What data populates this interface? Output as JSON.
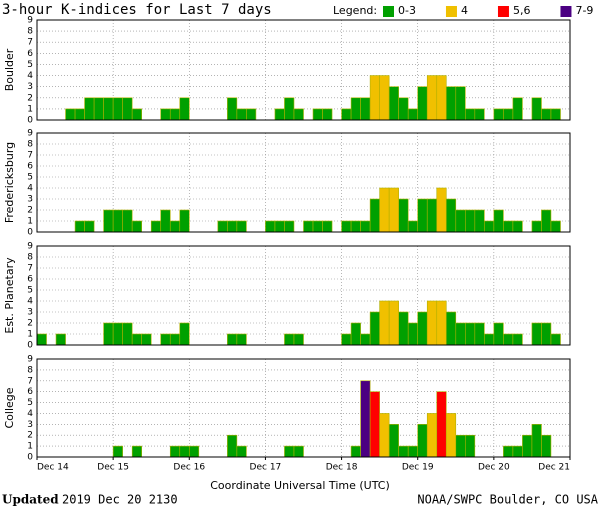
{
  "title": "3-hour K-indices for Last 7 days",
  "legend": {
    "title": "Legend:",
    "items": [
      {
        "label": "0-3",
        "color": "#00a000"
      },
      {
        "label": "4",
        "color": "#f0c000"
      },
      {
        "label": "5,6",
        "color": "#ff0000"
      },
      {
        "label": "7-9",
        "color": "#4b0082"
      }
    ]
  },
  "xlabel": "Coordinate Universal Time (UTC)",
  "footer": {
    "updated_label": "Updated",
    "updated": "2019 Dec 20 2130",
    "source": "NOAA/SWPC Boulder, CO USA"
  },
  "chart_data": [
    {
      "type": "bar",
      "ylabel": "Boulder",
      "ylim": [
        0,
        9
      ],
      "yticks": [
        0,
        1,
        2,
        3,
        4,
        5,
        6,
        7,
        8,
        9
      ],
      "values": [
        0,
        0,
        0,
        1,
        1,
        2,
        2,
        2,
        2,
        2,
        1,
        0,
        0,
        1,
        1,
        2,
        0,
        0,
        0,
        0,
        2,
        1,
        1,
        0,
        0,
        1,
        2,
        1,
        0,
        1,
        1,
        0,
        1,
        2,
        2,
        4,
        4,
        3,
        2,
        1,
        3,
        4,
        4,
        3,
        3,
        1,
        1,
        0,
        1,
        1,
        2,
        0,
        2,
        1,
        1,
        0
      ],
      "colors": [
        "#00a000",
        "#00a000",
        "#00a000",
        "#00a000",
        "#00a000",
        "#00a000",
        "#00a000",
        "#00a000",
        "#00a000",
        "#00a000",
        "#00a000",
        "#00a000",
        "#00a000",
        "#00a000",
        "#00a000",
        "#00a000",
        "#00a000",
        "#00a000",
        "#00a000",
        "#00a000",
        "#00a000",
        "#00a000",
        "#00a000",
        "#00a000",
        "#00a000",
        "#00a000",
        "#00a000",
        "#00a000",
        "#00a000",
        "#00a000",
        "#00a000",
        "#00a000",
        "#00a000",
        "#00a000",
        "#00a000",
        "#f0c000",
        "#f0c000",
        "#00a000",
        "#00a000",
        "#00a000",
        "#00a000",
        "#f0c000",
        "#f0c000",
        "#00a000",
        "#00a000",
        "#00a000",
        "#00a000",
        "#00a000",
        "#00a000",
        "#00a000",
        "#00a000",
        "#00a000",
        "#00a000",
        "#00a000",
        "#00a000",
        "#00a000"
      ]
    },
    {
      "type": "bar",
      "ylabel": "Fredericksburg",
      "ylim": [
        0,
        9
      ],
      "yticks": [
        0,
        1,
        2,
        3,
        4,
        5,
        6,
        7,
        8,
        9
      ],
      "values": [
        0,
        0,
        0,
        0,
        1,
        1,
        0,
        2,
        2,
        2,
        1,
        0,
        1,
        2,
        1,
        2,
        0,
        0,
        0,
        1,
        1,
        1,
        0,
        0,
        1,
        1,
        1,
        0,
        1,
        1,
        1,
        0,
        1,
        1,
        1,
        3,
        4,
        4,
        3,
        1,
        3,
        3,
        4,
        3,
        2,
        2,
        2,
        1,
        2,
        1,
        1,
        0,
        1,
        2,
        1,
        0
      ],
      "colors": [
        "#00a000",
        "#00a000",
        "#00a000",
        "#00a000",
        "#00a000",
        "#00a000",
        "#00a000",
        "#00a000",
        "#00a000",
        "#00a000",
        "#00a000",
        "#00a000",
        "#00a000",
        "#00a000",
        "#00a000",
        "#00a000",
        "#00a000",
        "#00a000",
        "#00a000",
        "#00a000",
        "#00a000",
        "#00a000",
        "#00a000",
        "#00a000",
        "#00a000",
        "#00a000",
        "#00a000",
        "#00a000",
        "#00a000",
        "#00a000",
        "#00a000",
        "#00a000",
        "#00a000",
        "#00a000",
        "#00a000",
        "#00a000",
        "#f0c000",
        "#f0c000",
        "#00a000",
        "#00a000",
        "#00a000",
        "#00a000",
        "#f0c000",
        "#00a000",
        "#00a000",
        "#00a000",
        "#00a000",
        "#00a000",
        "#00a000",
        "#00a000",
        "#00a000",
        "#00a000",
        "#00a000",
        "#00a000",
        "#00a000",
        "#00a000"
      ]
    },
    {
      "type": "bar",
      "ylabel": "Est. Planetary",
      "ylim": [
        0,
        9
      ],
      "yticks": [
        0,
        1,
        2,
        3,
        4,
        5,
        6,
        7,
        8,
        9
      ],
      "values": [
        1,
        0,
        1,
        0,
        0,
        0,
        0,
        2,
        2,
        2,
        1,
        1,
        0,
        1,
        1,
        2,
        0,
        0,
        0,
        0,
        1,
        1,
        0,
        0,
        0,
        0,
        1,
        1,
        0,
        0,
        0,
        0,
        1,
        2,
        1,
        3,
        4,
        4,
        3,
        2,
        3,
        4,
        4,
        3,
        2,
        2,
        2,
        1,
        2,
        1,
        1,
        0,
        2,
        2,
        1,
        0
      ],
      "colors": [
        "#00a000",
        "#00a000",
        "#00a000",
        "#00a000",
        "#00a000",
        "#00a000",
        "#00a000",
        "#00a000",
        "#00a000",
        "#00a000",
        "#00a000",
        "#00a000",
        "#00a000",
        "#00a000",
        "#00a000",
        "#00a000",
        "#00a000",
        "#00a000",
        "#00a000",
        "#00a000",
        "#00a000",
        "#00a000",
        "#00a000",
        "#00a000",
        "#00a000",
        "#00a000",
        "#00a000",
        "#00a000",
        "#00a000",
        "#00a000",
        "#00a000",
        "#00a000",
        "#00a000",
        "#00a000",
        "#00a000",
        "#00a000",
        "#f0c000",
        "#f0c000",
        "#00a000",
        "#00a000",
        "#00a000",
        "#f0c000",
        "#f0c000",
        "#00a000",
        "#00a000",
        "#00a000",
        "#00a000",
        "#00a000",
        "#00a000",
        "#00a000",
        "#00a000",
        "#00a000",
        "#00a000",
        "#00a000",
        "#00a000",
        "#00a000"
      ]
    },
    {
      "type": "bar",
      "ylabel": "College",
      "ylim": [
        0,
        9
      ],
      "yticks": [
        0,
        1,
        2,
        3,
        4,
        5,
        6,
        7,
        8,
        9
      ],
      "values": [
        0,
        0,
        0,
        0,
        0,
        0,
        0,
        0,
        1,
        0,
        1,
        0,
        0,
        0,
        1,
        1,
        1,
        0,
        0,
        0,
        2,
        1,
        0,
        0,
        0,
        0,
        1,
        1,
        0,
        0,
        0,
        0,
        0,
        1,
        7,
        6,
        4,
        3,
        1,
        1,
        3,
        4,
        6,
        4,
        2,
        2,
        0,
        0,
        0,
        1,
        1,
        2,
        3,
        2,
        0,
        0
      ],
      "colors": [
        "#00a000",
        "#00a000",
        "#00a000",
        "#00a000",
        "#00a000",
        "#00a000",
        "#00a000",
        "#00a000",
        "#00a000",
        "#00a000",
        "#00a000",
        "#00a000",
        "#00a000",
        "#00a000",
        "#00a000",
        "#00a000",
        "#00a000",
        "#00a000",
        "#00a000",
        "#00a000",
        "#00a000",
        "#00a000",
        "#00a000",
        "#00a000",
        "#00a000",
        "#00a000",
        "#00a000",
        "#00a000",
        "#00a000",
        "#00a000",
        "#00a000",
        "#00a000",
        "#00a000",
        "#00a000",
        "#4b0082",
        "#ff0000",
        "#f0c000",
        "#00a000",
        "#00a000",
        "#00a000",
        "#00a000",
        "#f0c000",
        "#ff0000",
        "#f0c000",
        "#00a000",
        "#00a000",
        "#00a000",
        "#00a000",
        "#00a000",
        "#00a000",
        "#00a000",
        "#00a000",
        "#00a000",
        "#00a000",
        "#00a000",
        "#00a000"
      ],
      "xlim": [
        0,
        7
      ],
      "xticks": [
        {
          "value": 0,
          "label": "Dec 14"
        },
        {
          "value": 1,
          "label": "Dec 15"
        },
        {
          "value": 2,
          "label": "Dec 16"
        },
        {
          "value": 3,
          "label": "Dec 17"
        },
        {
          "value": 4,
          "label": "Dec 18"
        },
        {
          "value": 5,
          "label": "Dec 19"
        },
        {
          "value": 6,
          "label": "Dec 20"
        },
        {
          "value": 7,
          "label": "Dec 21"
        }
      ]
    }
  ]
}
